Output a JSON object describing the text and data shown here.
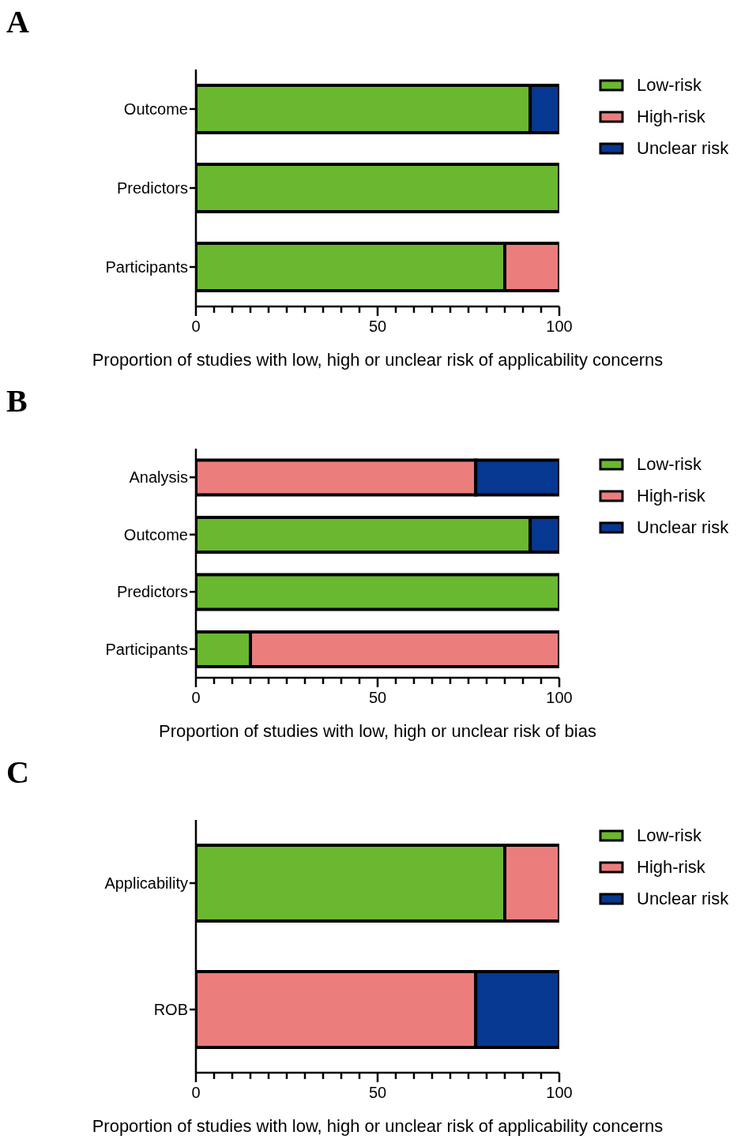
{
  "chart_data": [
    {
      "type": "bar",
      "title": "A",
      "orientation": "horizontal",
      "stacked": true,
      "categories": [
        "Outcome",
        "Predictors",
        "Participants"
      ],
      "series": [
        {
          "name": "Low-risk",
          "color": "#6ab82f",
          "values": [
            92,
            100,
            85
          ]
        },
        {
          "name": "High-risk",
          "color": "#ec7d7d",
          "values": [
            0,
            0,
            15
          ]
        },
        {
          "name": "Unclear risk",
          "color": "#063891",
          "values": [
            8,
            0,
            0
          ]
        }
      ],
      "xlabel": "Proportion of studies with low, high or unclear risk of applicability concerns",
      "xlim": [
        0,
        100
      ],
      "xticks": [
        0,
        {
          "value": 5,
          "label": null
        },
        {
          "value": 10,
          "label": null
        },
        {
          "value": 15,
          "label": null
        },
        {
          "value": 20,
          "label": null
        },
        {
          "value": 25,
          "label": null
        },
        {
          "value": 30,
          "label": null
        },
        {
          "value": 35,
          "label": null
        },
        {
          "value": 40,
          "label": null
        },
        {
          "value": 45,
          "label": null
        },
        50,
        {
          "value": 55,
          "label": null
        },
        {
          "value": 60,
          "label": null
        },
        {
          "value": 65,
          "label": null
        },
        {
          "value": 70,
          "label": null
        },
        {
          "value": 75,
          "label": null
        },
        {
          "value": 80,
          "label": null
        },
        {
          "value": 85,
          "label": null
        },
        {
          "value": 90,
          "label": null
        },
        {
          "value": 95,
          "label": null
        },
        100
      ],
      "legend": "top right",
      "grid": false
    },
    {
      "type": "bar",
      "title": "B",
      "orientation": "horizontal",
      "stacked": true,
      "categories": [
        "Analysis",
        "Outcome",
        "Predictors",
        "Participants"
      ],
      "series": [
        {
          "name": "Low-risk",
          "color": "#6ab82f",
          "values": [
            0,
            92,
            100,
            15
          ]
        },
        {
          "name": "High-risk",
          "color": "#ec7d7d",
          "values": [
            77,
            0,
            0,
            85
          ]
        },
        {
          "name": "Unclear risk",
          "color": "#063891",
          "values": [
            23,
            8,
            0,
            0
          ]
        }
      ],
      "xlabel": "Proportion of studies with low, high or unclear risk of bias",
      "xlim": [
        0,
        100
      ],
      "xticks": [
        0,
        {
          "value": 5,
          "label": null
        },
        {
          "value": 10,
          "label": null
        },
        {
          "value": 15,
          "label": null
        },
        {
          "value": 20,
          "label": null
        },
        {
          "value": 25,
          "label": null
        },
        {
          "value": 30,
          "label": null
        },
        {
          "value": 35,
          "label": null
        },
        {
          "value": 40,
          "label": null
        },
        {
          "value": 45,
          "label": null
        },
        50,
        {
          "value": 55,
          "label": null
        },
        {
          "value": 60,
          "label": null
        },
        {
          "value": 65,
          "label": null
        },
        {
          "value": 70,
          "label": null
        },
        {
          "value": 75,
          "label": null
        },
        {
          "value": 80,
          "label": null
        },
        {
          "value": 85,
          "label": null
        },
        {
          "value": 90,
          "label": null
        },
        {
          "value": 95,
          "label": null
        },
        100
      ],
      "legend": "top right",
      "grid": false
    },
    {
      "type": "bar",
      "title": "C",
      "orientation": "horizontal",
      "stacked": true,
      "categories": [
        "Applicability",
        "ROB"
      ],
      "series": [
        {
          "name": "Low-risk",
          "color": "#6ab82f",
          "values": [
            85,
            0
          ]
        },
        {
          "name": "High-risk",
          "color": "#ec7d7d",
          "values": [
            15,
            77
          ]
        },
        {
          "name": "Unclear risk",
          "color": "#063891",
          "values": [
            0,
            23
          ]
        }
      ],
      "xlabel": "Proportion of studies with low, high or unclear risk of applicability concerns",
      "xlim": [
        0,
        100
      ],
      "xticks": [
        0,
        {
          "value": 5,
          "label": null
        },
        {
          "value": 10,
          "label": null
        },
        {
          "value": 15,
          "label": null
        },
        {
          "value": 20,
          "label": null
        },
        {
          "value": 25,
          "label": null
        },
        {
          "value": 30,
          "label": null
        },
        {
          "value": 35,
          "label": null
        },
        {
          "value": 40,
          "label": null
        },
        {
          "value": 45,
          "label": null
        },
        50,
        {
          "value": 55,
          "label": null
        },
        {
          "value": 60,
          "label": null
        },
        {
          "value": 65,
          "label": null
        },
        {
          "value": 70,
          "label": null
        },
        {
          "value": 75,
          "label": null
        },
        {
          "value": 80,
          "label": null
        },
        {
          "value": 85,
          "label": null
        },
        {
          "value": 90,
          "label": null
        },
        {
          "value": 95,
          "label": null
        },
        100
      ],
      "legend": "top right",
      "grid": false
    }
  ]
}
